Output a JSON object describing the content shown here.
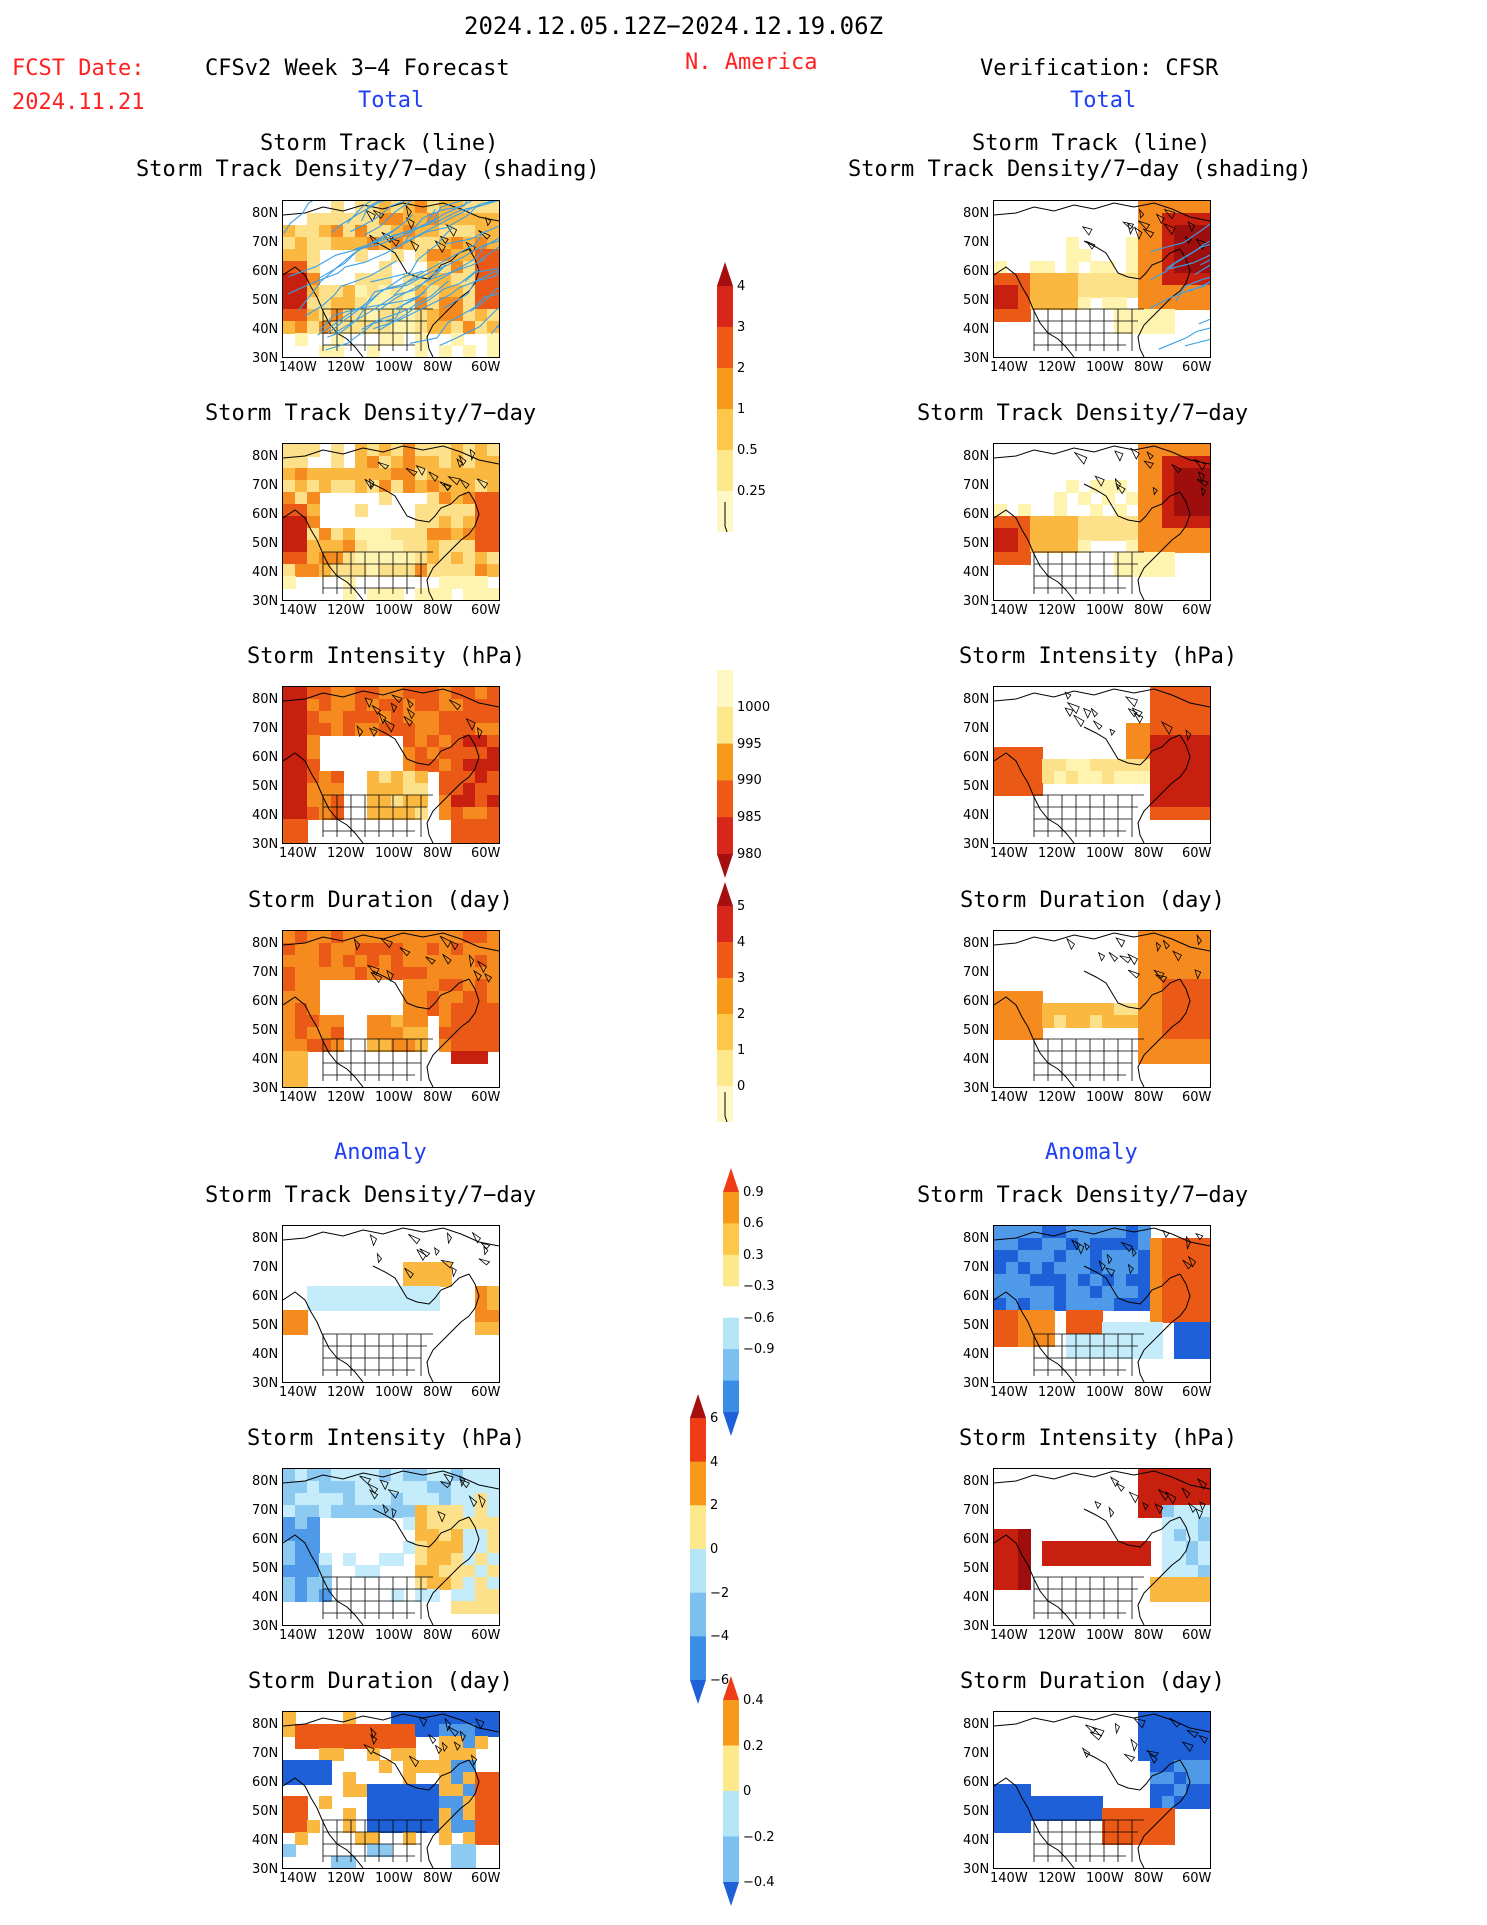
{
  "header": {
    "period": "2024.12.05.12Z−2024.12.19.06Z",
    "fcst_label": "FCST Date:",
    "fcst_date": "2024.11.21",
    "model_title": "CFSv2 Week 3−4 Forecast",
    "region": "N. America",
    "verification": "Verification: CFSR",
    "total_left": "Total",
    "total_right": "Total",
    "anomaly_left": "Anomaly",
    "anomaly_right": "Anomaly"
  },
  "titles": {
    "storm_track_line": "Storm Track (line)",
    "storm_track_density_shading": "Storm Track Density/7−day (shading)",
    "storm_track_density": "Storm Track Density/7−day",
    "storm_intensity": "Storm Intensity (hPa)",
    "storm_duration": "Storm Duration (day)"
  },
  "axes": {
    "lat_ticks": [
      "80N",
      "70N",
      "60N",
      "50N",
      "40N",
      "30N"
    ],
    "lon_ticks": [
      "140W",
      "120W",
      "100W",
      "80W",
      "60W"
    ]
  },
  "colorbars": {
    "density_total": {
      "labels": [
        "4",
        "3",
        "2",
        "1",
        "0.5",
        "0.25"
      ],
      "colors": [
        "#a50f0f",
        "#d8261a",
        "#f05a16",
        "#f79a1c",
        "#fdc74a",
        "#fde98c",
        "#fff8c4"
      ]
    },
    "intensity_total": {
      "labels": [
        "1000",
        "995",
        "990",
        "985",
        "980"
      ],
      "colors": [
        "#fff8c4",
        "#fde98c",
        "#f79a1c",
        "#f05a16",
        "#d8261a",
        "#a50f0f"
      ]
    },
    "duration_total": {
      "labels": [
        "5",
        "4",
        "3",
        "2",
        "1",
        "0"
      ],
      "colors": [
        "#a50f0f",
        "#d8261a",
        "#f05a16",
        "#f79a1c",
        "#fdc74a",
        "#fde98c",
        "#fff8c4"
      ]
    },
    "density_anom": {
      "labels": [
        "0.9",
        "0.6",
        "0.3",
        "−0.3",
        "−0.6",
        "−0.9"
      ],
      "colors": [
        "#f03c14",
        "#f79a1c",
        "#fdc74a",
        "#fde98c",
        "#ffffff",
        "#b5e6f7",
        "#7cc0f0",
        "#3a8ee6",
        "#1e60d8"
      ]
    },
    "intensity_anom": {
      "labels": [
        "6",
        "4",
        "2",
        "0",
        "−2",
        "−4",
        "−6"
      ],
      "colors": [
        "#a50f0f",
        "#f03c14",
        "#f79a1c",
        "#fde98c",
        "#b5e6f7",
        "#7cc0f0",
        "#3a8ee6",
        "#1e60d8"
      ]
    },
    "duration_anom": {
      "labels": [
        "0.4",
        "0.2",
        "0",
        "−0.2",
        "−0.4"
      ],
      "colors": [
        "#f03c14",
        "#f79a1c",
        "#fde98c",
        "#b5e6f7",
        "#7cc0f0",
        "#1e60d8"
      ]
    }
  },
  "palette": {
    "d1": "#fff3b0",
    "d2": "#fde08a",
    "d3": "#fbb840",
    "d4": "#f58a1e",
    "d5": "#ea5a16",
    "d6": "#c8200e",
    "d7": "#9e0e0c",
    "b1": "#c4ecfa",
    "b2": "#8ccaf2",
    "b3": "#4e9ae8",
    "b4": "#1e60d8",
    "track": "#3aa0e8"
  }
}
